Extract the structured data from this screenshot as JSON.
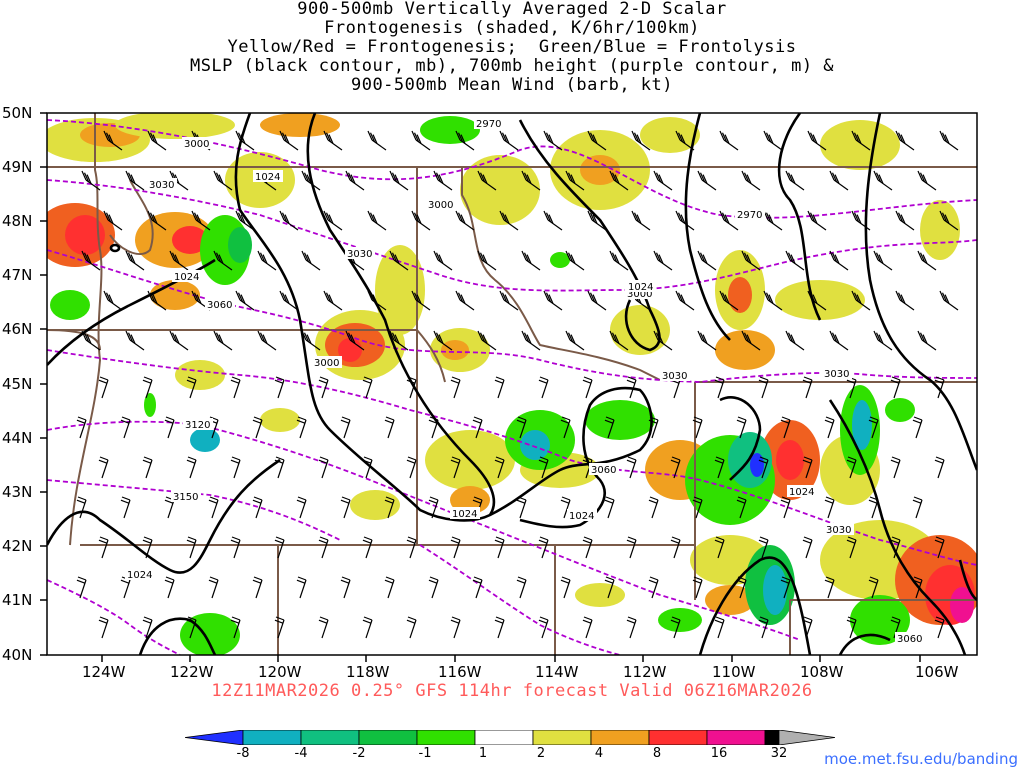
{
  "title": {
    "lines": [
      "900-500mb Vertically Averaged 2-D Scalar",
      "Frontogenesis (shaded, K/6hr/100km)",
      "Yellow/Red = Frontogenesis;  Green/Blue = Frontolysis",
      "MSLP (black contour, mb), 700mb height (purple contour, m) &",
      "900-500mb Mean Wind (barb, kt)"
    ]
  },
  "axes": {
    "latitudes": [
      "50N",
      "49N",
      "48N",
      "47N",
      "46N",
      "45N",
      "44N",
      "43N",
      "42N",
      "41N",
      "40N"
    ],
    "longitudes": [
      "124W",
      "122W",
      "120W",
      "118W",
      "116W",
      "114W",
      "112W",
      "110W",
      "108W",
      "106W"
    ]
  },
  "contour_labels": {
    "height": [
      "3000",
      "3030",
      "3000",
      "2970",
      "2970",
      "3030",
      "3060",
      "3000",
      "3030",
      "3000",
      "3120",
      "3150",
      "3060",
      "3030",
      "3060",
      "3030"
    ],
    "pressure": [
      "1024",
      "1024",
      "1024",
      "1024",
      "1024",
      "1024",
      "1024"
    ]
  },
  "valid_time": "12Z11MAR2026 0.25° GFS 114hr forecast Valid 06Z16MAR2026",
  "colorbar": {
    "labels": [
      "-8",
      "-4",
      "-2",
      "-1",
      "1",
      "2",
      "4",
      "8",
      "16",
      "32"
    ],
    "colors": [
      "#2030ff",
      "#10b0c0",
      "#10c080",
      "#10c040",
      "#30e000",
      "#ffffff",
      "#e0e040",
      "#f0a020",
      "#f06020",
      "#ff3030",
      "#f01090",
      "#000000",
      "#b0b0b0"
    ]
  },
  "colors": {
    "frame": "#000000",
    "state_borders": "#7a5a48",
    "height_contours": "#b000d0",
    "mslp_contours": "#000000",
    "valid_text": "#ff5a5a",
    "credit_text": "#3b6fff"
  },
  "credit": "moe.met.fsu.edu/banding"
}
